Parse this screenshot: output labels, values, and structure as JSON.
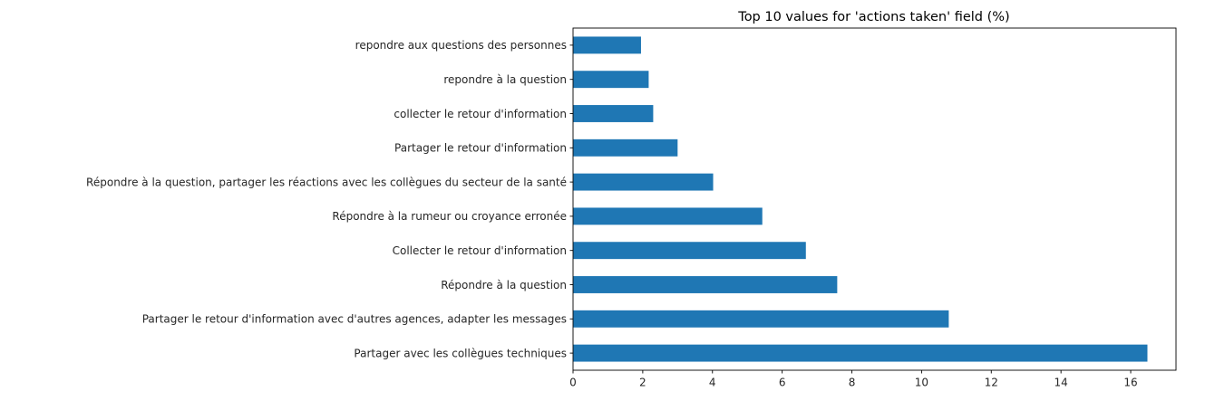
{
  "chart_data": {
    "type": "bar",
    "orientation": "horizontal",
    "title": "Top 10 values for 'actions taken' field (%)",
    "xlabel": "",
    "ylabel": "",
    "categories": [
      "repondre aux questions des personnes",
      "repondre à la question",
      "collecter le retour d'information ",
      "Partager le retour d'information",
      "Répondre à la question, partager les réactions avec les collègues du secteur de la santé",
      "Répondre à la rumeur ou croyance erronée",
      "Collecter le retour d'information",
      "Répondre à la question",
      "Partager le retour d'information avec d'autres agences, adapter les messages",
      "Partager avec les collègues techniques"
    ],
    "values": [
      1.95,
      2.17,
      2.3,
      3.0,
      4.02,
      5.43,
      6.68,
      7.58,
      10.78,
      16.48
    ],
    "xlim": [
      0,
      17.3
    ],
    "xticks": [
      "0",
      "2",
      "4",
      "6",
      "8",
      "10",
      "12",
      "14",
      "16"
    ],
    "bar_color": "#1f77b4",
    "grid": false,
    "legend": "none"
  }
}
